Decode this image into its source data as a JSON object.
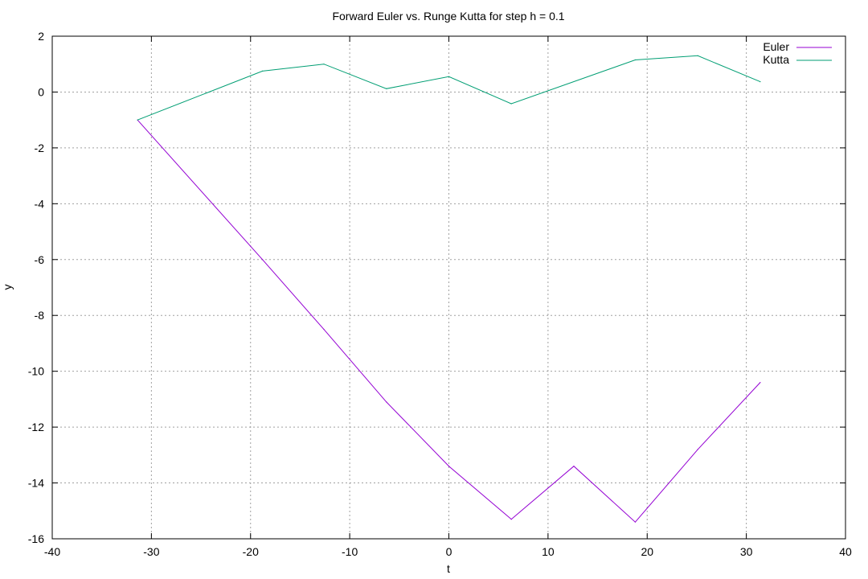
{
  "chart_data": {
    "type": "line",
    "title": "Forward Euler vs. Runge Kutta for step h = 0.1",
    "xlabel": "t",
    "ylabel": "y",
    "xlim": [
      -40,
      40
    ],
    "ylim": [
      -16,
      2
    ],
    "xticks": [
      "-40",
      "-30",
      "-20",
      "-10",
      "0",
      "10",
      "20",
      "30",
      "40"
    ],
    "yticks": [
      "2",
      "0",
      "-2",
      "-4",
      "-6",
      "-8",
      "-10",
      "-12",
      "-14",
      "-16"
    ],
    "grid": true,
    "legend_position": "top-right",
    "series": [
      {
        "name": "Euler",
        "color": "#9400d3",
        "x": [
          -31.4,
          -18.8,
          -12.6,
          -6.3,
          0.0,
          6.3,
          12.6,
          18.8,
          25.1,
          31.4
        ],
        "y": [
          -1.0,
          -6.0,
          -8.5,
          -11.1,
          -13.4,
          -15.3,
          -13.4,
          -15.4,
          -12.8,
          -10.4
        ]
      },
      {
        "name": "Kutta",
        "color": "#009e73",
        "x": [
          -31.4,
          -18.8,
          -12.6,
          -6.3,
          0.0,
          6.3,
          18.8,
          25.1,
          31.4
        ],
        "y": [
          -1.0,
          0.75,
          1.0,
          0.12,
          0.55,
          -0.42,
          1.15,
          1.3,
          0.37
        ]
      }
    ]
  }
}
